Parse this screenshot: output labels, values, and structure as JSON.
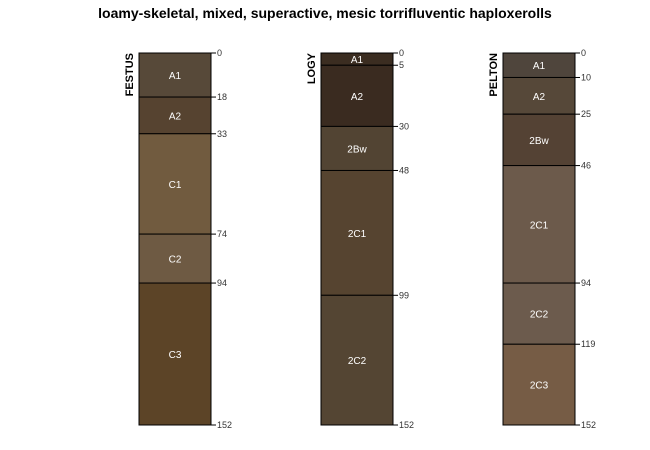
{
  "title": "loamy-skeletal, mixed, superactive, mesic torrifluventic haploxerolls",
  "max_depth": 152,
  "profiles": [
    {
      "name": "FESTUS",
      "horizons": [
        {
          "name": "A1",
          "top": 0,
          "bottom": 18,
          "color": "#574939"
        },
        {
          "name": "A2",
          "top": 18,
          "bottom": 33,
          "color": "#564330"
        },
        {
          "name": "C1",
          "top": 33,
          "bottom": 74,
          "color": "#715b3f"
        },
        {
          "name": "C2",
          "top": 74,
          "bottom": 94,
          "color": "#6e5a43"
        },
        {
          "name": "C3",
          "top": 94,
          "bottom": 152,
          "color": "#5c4427"
        }
      ],
      "depth_labels": [
        "0",
        "18",
        "33",
        "74",
        "94",
        "152"
      ]
    },
    {
      "name": "LOGY",
      "horizons": [
        {
          "name": "A1",
          "top": 0,
          "bottom": 5,
          "color": "#3b2d21"
        },
        {
          "name": "A2",
          "top": 5,
          "bottom": 30,
          "color": "#3a2b20"
        },
        {
          "name": "2Bw",
          "top": 30,
          "bottom": 48,
          "color": "#524433"
        },
        {
          "name": "2C1",
          "top": 48,
          "bottom": 99,
          "color": "#564430"
        },
        {
          "name": "2C2",
          "top": 99,
          "bottom": 152,
          "color": "#544533"
        }
      ],
      "depth_labels": [
        "0",
        "5",
        "30",
        "48",
        "99",
        "152"
      ]
    },
    {
      "name": "PELTON",
      "horizons": [
        {
          "name": "A1",
          "top": 0,
          "bottom": 10,
          "color": "#4f453c"
        },
        {
          "name": "A2",
          "top": 10,
          "bottom": 25,
          "color": "#564839"
        },
        {
          "name": "2Bw",
          "top": 25,
          "bottom": 46,
          "color": "#544234"
        },
        {
          "name": "2C1",
          "top": 46,
          "bottom": 94,
          "color": "#6c5a4b"
        },
        {
          "name": "2C2",
          "top": 94,
          "bottom": 119,
          "color": "#6c5b4d"
        },
        {
          "name": "2C3",
          "top": 119,
          "bottom": 152,
          "color": "#765c45"
        }
      ],
      "depth_labels": [
        "0",
        "10",
        "25",
        "46",
        "94",
        "119",
        "152"
      ]
    }
  ]
}
